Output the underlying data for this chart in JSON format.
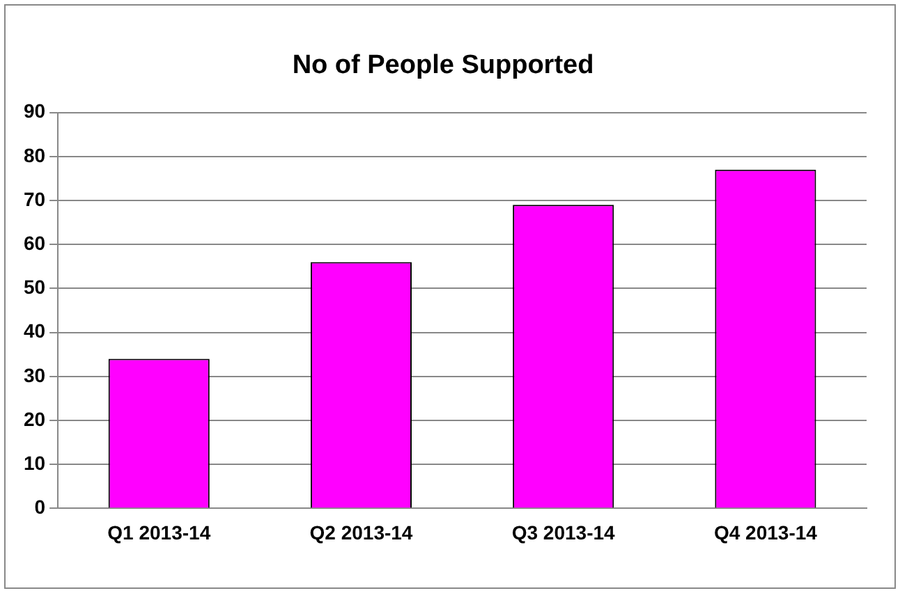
{
  "chart_data": {
    "type": "bar",
    "title": "No of People Supported",
    "categories": [
      "Q1 2013-14",
      "Q2 2013-14",
      "Q3 2013-14",
      "Q4 2013-14"
    ],
    "values": [
      34,
      56,
      69,
      77
    ],
    "color": "#ff00ff",
    "ylim": [
      0,
      90
    ],
    "yticks": [
      0,
      10,
      20,
      30,
      40,
      50,
      60,
      70,
      80,
      90
    ],
    "grid": "y"
  }
}
